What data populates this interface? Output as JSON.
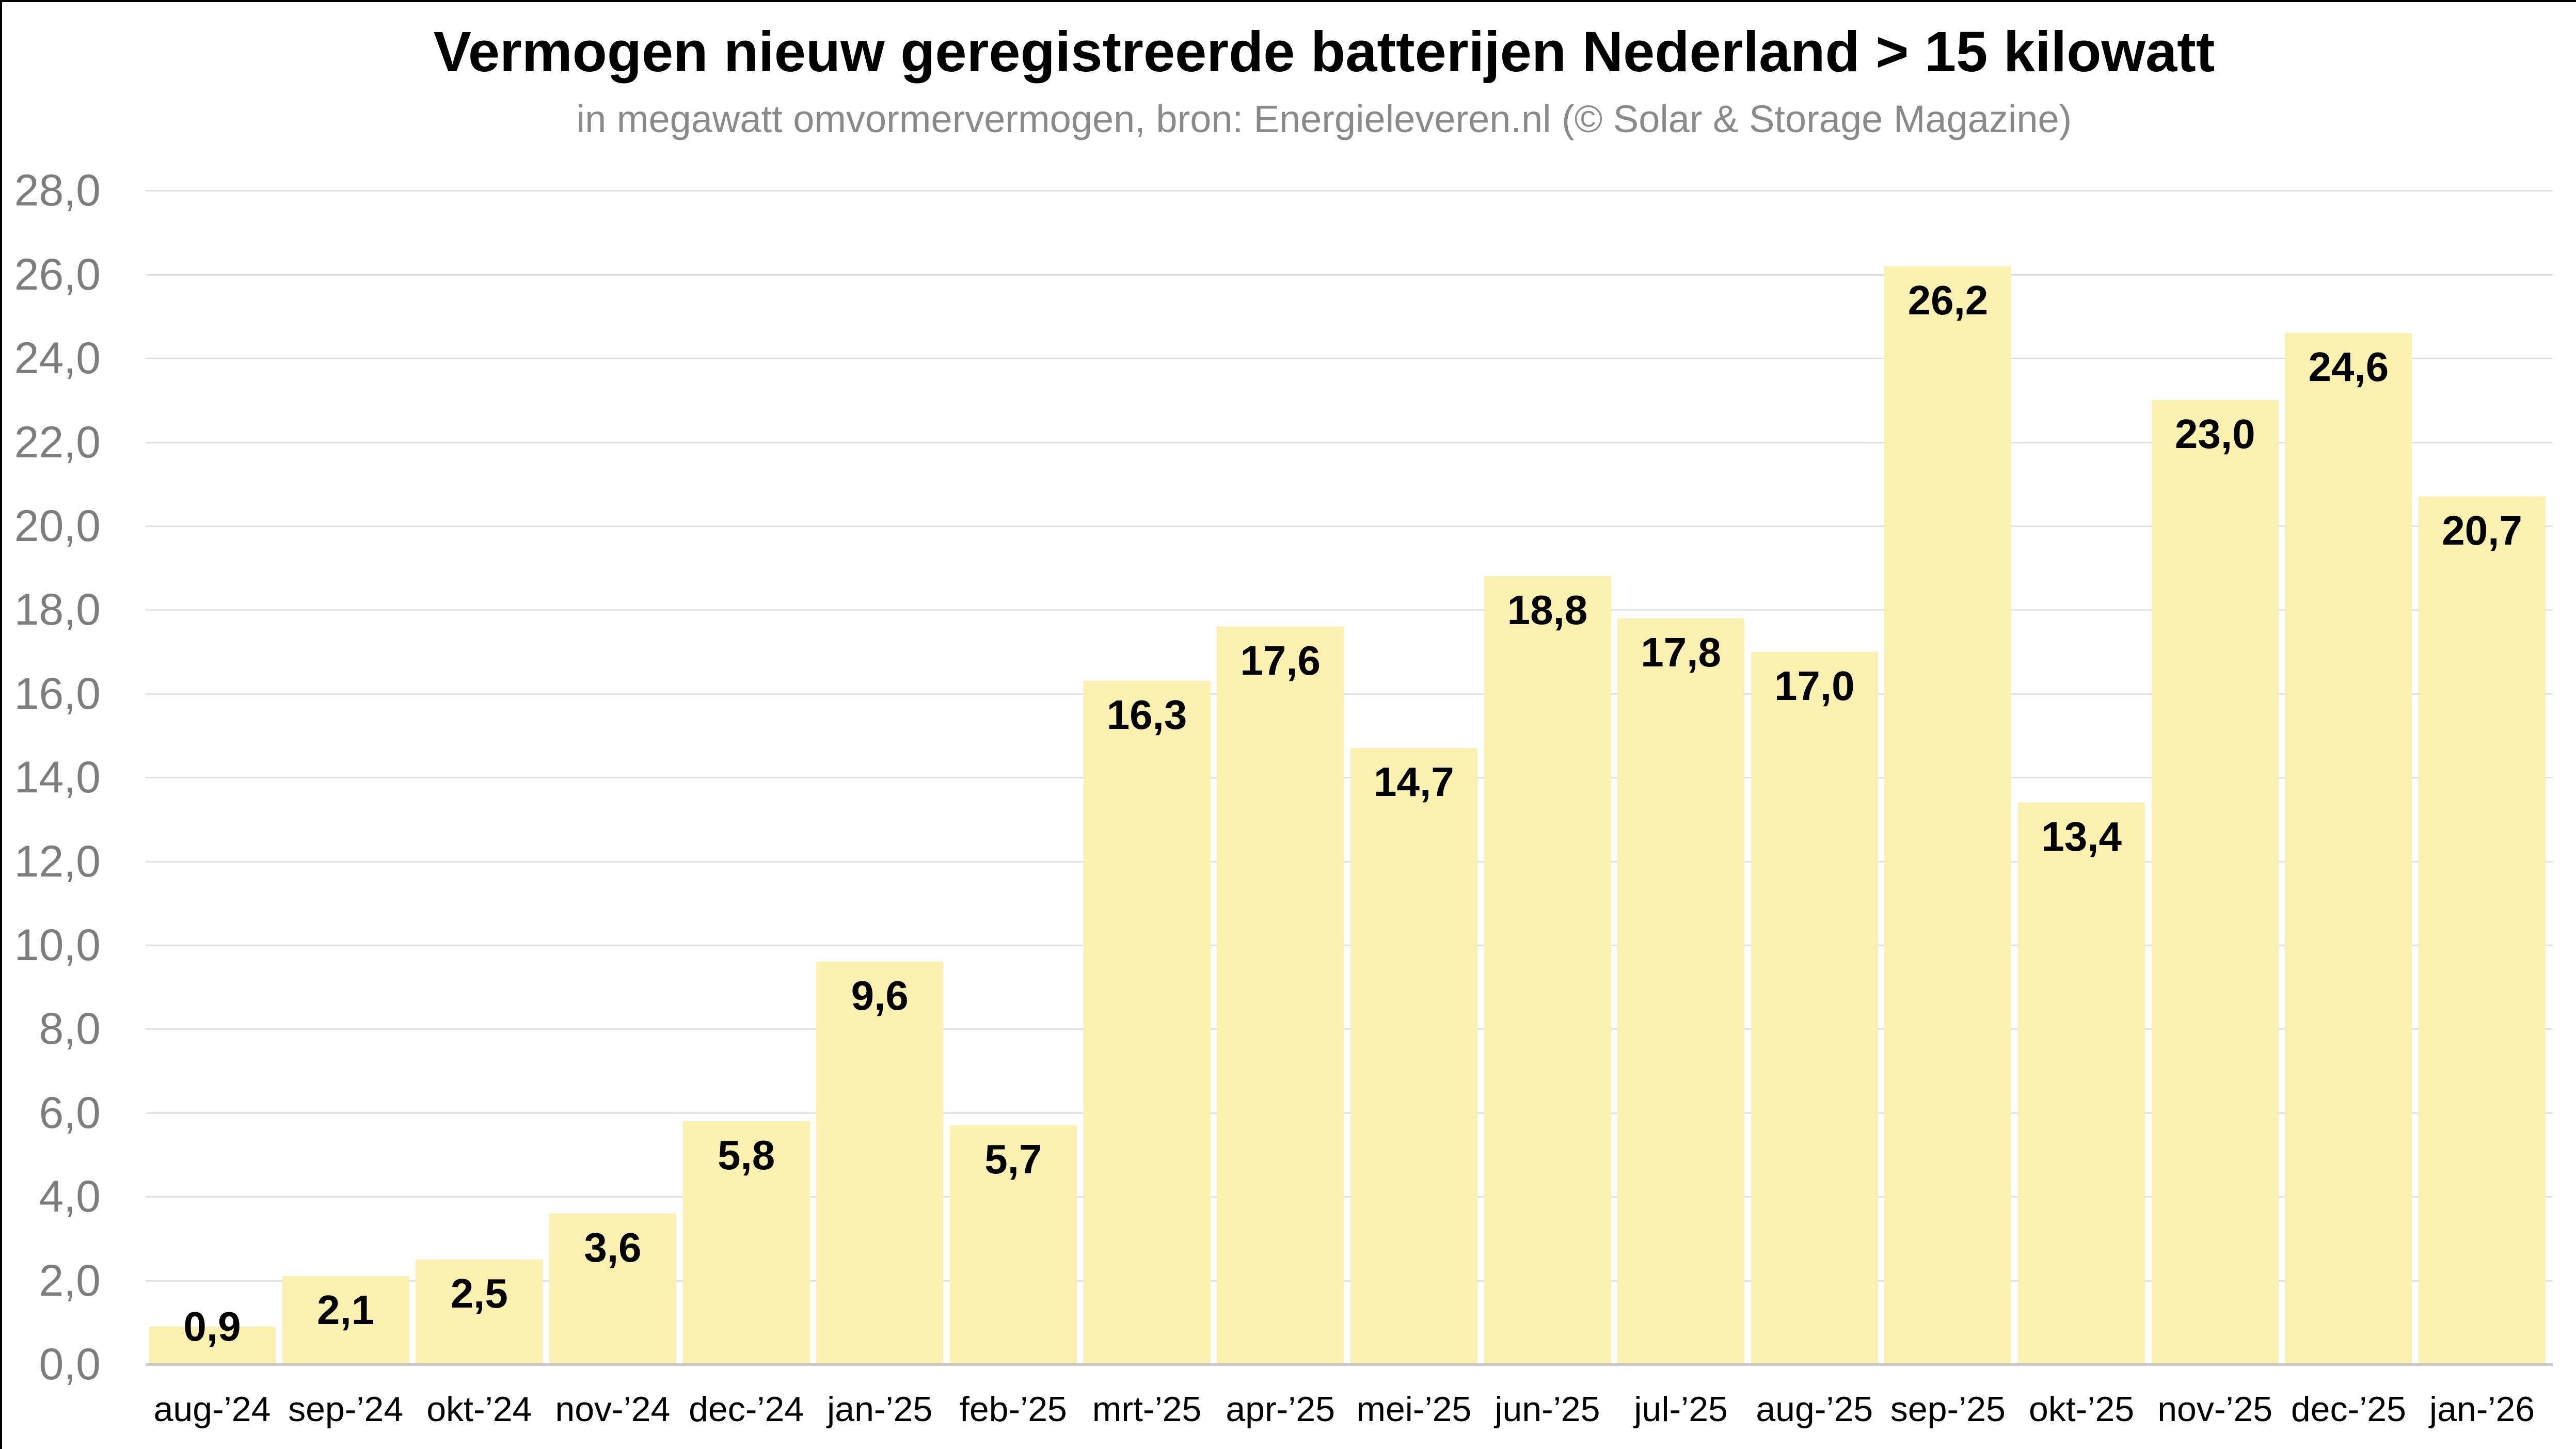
{
  "page": {
    "background_color": "#FFFFFF",
    "border_color": "#000000"
  },
  "chart_data": {
    "type": "bar",
    "title": "Vermogen nieuw geregistreerde batterijen Nederland > 15 kilowatt",
    "subtitle": "in megawatt omvormervermogen, bron: Energieleveren.nl (© Solar & Storage Magazine)",
    "categories": [
      "aug-’24",
      "sep-’24",
      "okt-’24",
      "nov-’24",
      "dec-’24",
      "jan-’25",
      "feb-’25",
      "mrt-’25",
      "apr-’25",
      "mei-’25",
      "jun-’25",
      "jul-’25",
      "aug-’25",
      "sep-’25",
      "okt-’25",
      "nov-’25",
      "dec-’25",
      "jan-’26"
    ],
    "values": [
      0.9,
      2.1,
      2.5,
      3.6,
      5.8,
      9.6,
      5.7,
      16.3,
      17.6,
      14.7,
      18.8,
      17.8,
      17.0,
      26.2,
      13.4,
      23.0,
      24.6,
      20.7
    ],
    "value_labels": [
      "0,9",
      "2,1",
      "2,5",
      "3,6",
      "5,8",
      "9,6",
      "5,7",
      "16,3",
      "17,6",
      "14,7",
      "18,8",
      "17,8",
      "17,0",
      "26,2",
      "13,4",
      "23,0",
      "24,6",
      "20,7"
    ],
    "xlabel": "",
    "ylabel": "",
    "ylim": [
      0,
      28
    ],
    "y_tick_step": 2,
    "y_ticks": [
      0,
      2,
      4,
      6,
      8,
      10,
      12,
      14,
      16,
      18,
      20,
      22,
      24,
      26,
      28
    ],
    "y_tick_labels": [
      "0,0",
      "2,0",
      "4,0",
      "6,0",
      "8,0",
      "10,0",
      "12,0",
      "14,0",
      "16,0",
      "18,0",
      "20,0",
      "22,0",
      "24,0",
      "26,0",
      "28,0"
    ],
    "grid": "horizontal",
    "legend_position": "none",
    "decimal_separator": ",",
    "colors": {
      "bar_fill": "#FAF1B0",
      "gridline": "#E2E2E2",
      "axis_line": "#CCCCCC",
      "title_text": "#000000",
      "subtitle_text": "#8A8A8A",
      "y_tick_text": "#7D7D7D",
      "x_tick_text": "#000000",
      "value_label_text": "#000000"
    }
  }
}
